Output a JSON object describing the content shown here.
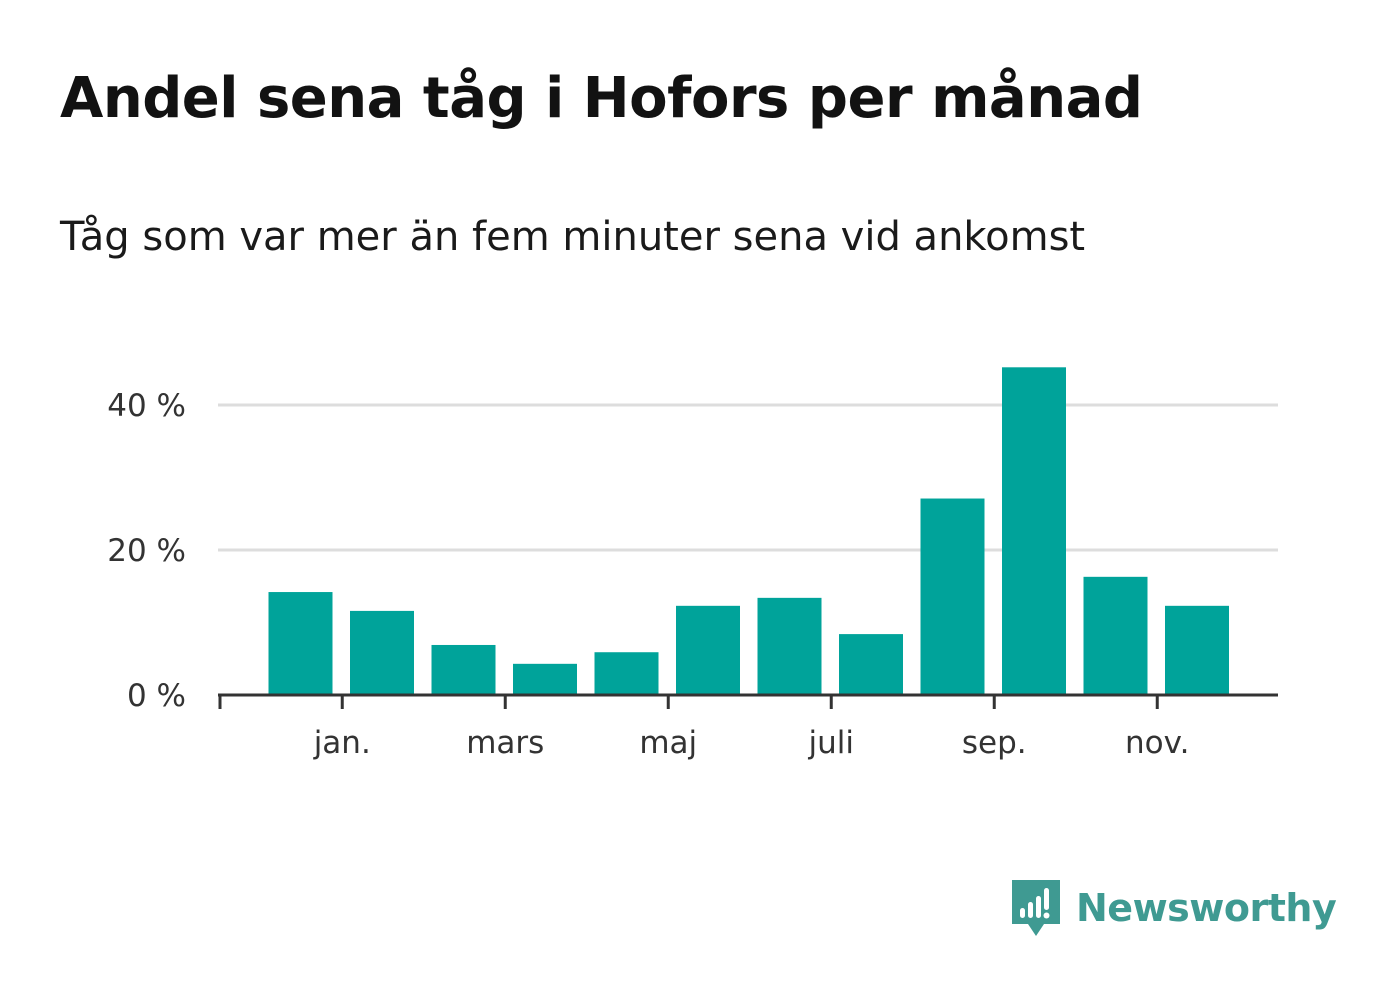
{
  "title": "Andel sena tåg i Hofors per månad",
  "subtitle": "Tåg som var mer än fem minuter sena vid ankomst",
  "brand": {
    "name": "Newsworthy",
    "icon": "newsworthy-logo-icon",
    "color": "#3f9a92"
  },
  "chart_data": {
    "type": "bar",
    "title": "Andel sena tåg i Hofors per månad",
    "subtitle": "Tåg som var mer än fem minuter sena vid ankomst",
    "ylim": [
      0,
      50
    ],
    "y_ticks": [
      0,
      20,
      40
    ],
    "y_tick_labels": [
      "0 %",
      "20 %",
      "40 %"
    ],
    "x_tick_labels": [
      "jan.",
      "mars",
      "maj",
      "juli",
      "sep.",
      "nov."
    ],
    "x_tick_positions": [
      1,
      3,
      5,
      7,
      9,
      11
    ],
    "x": [
      0,
      1,
      2,
      3,
      4,
      5,
      6,
      7,
      8,
      9,
      10,
      11
    ],
    "values": [
      14.2,
      11.6,
      6.9,
      4.3,
      5.9,
      12.3,
      13.4,
      8.4,
      27.1,
      45.2,
      16.3,
      12.3
    ],
    "grid": true,
    "colors": {
      "bar": "#00a39a",
      "grid": "#dddddd",
      "axis": "#333333"
    }
  }
}
